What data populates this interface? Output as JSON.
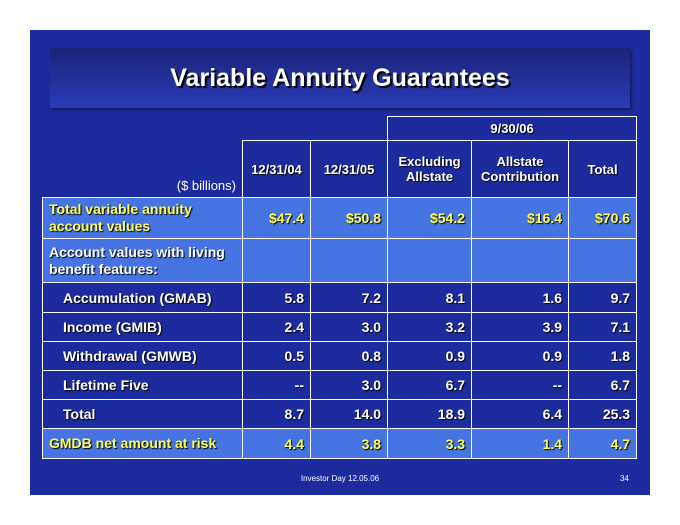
{
  "title": "Variable Annuity Guarantees",
  "table": {
    "group_header": "9/30/06",
    "unit_label": "($ billions)",
    "columns": [
      "12/31/04",
      "12/31/05",
      "Excluding Allstate",
      "Allstate Contribution",
      "Total"
    ],
    "rows": [
      {
        "label": "Total variable annuity account values",
        "values": [
          "$47.4",
          "$50.8",
          "$54.2",
          "$16.4",
          "$70.6"
        ]
      },
      {
        "label": "Account values with living benefit features:"
      },
      {
        "label": "Accumulation (GMAB)",
        "values": [
          "5.8",
          "7.2",
          "8.1",
          "1.6",
          "9.7"
        ]
      },
      {
        "label": "Income (GMIB)",
        "values": [
          "2.4",
          "3.0",
          "3.2",
          "3.9",
          "7.1"
        ]
      },
      {
        "label": "Withdrawal (GMWB)",
        "values": [
          "0.5",
          "0.8",
          "0.9",
          "0.9",
          "1.8"
        ]
      },
      {
        "label": "Lifetime Five",
        "values": [
          "--",
          "3.0",
          "6.7",
          "--",
          "6.7"
        ]
      },
      {
        "label": "Total",
        "values": [
          "8.7",
          "14.0",
          "18.9",
          "6.4",
          "25.3"
        ]
      },
      {
        "label": "GMDB net amount at risk",
        "values": [
          "4.4",
          "3.8",
          "3.3",
          "1.4",
          "4.7"
        ]
      }
    ]
  },
  "footer": {
    "text": "Investor Day 12.05.06",
    "page": "34"
  }
}
